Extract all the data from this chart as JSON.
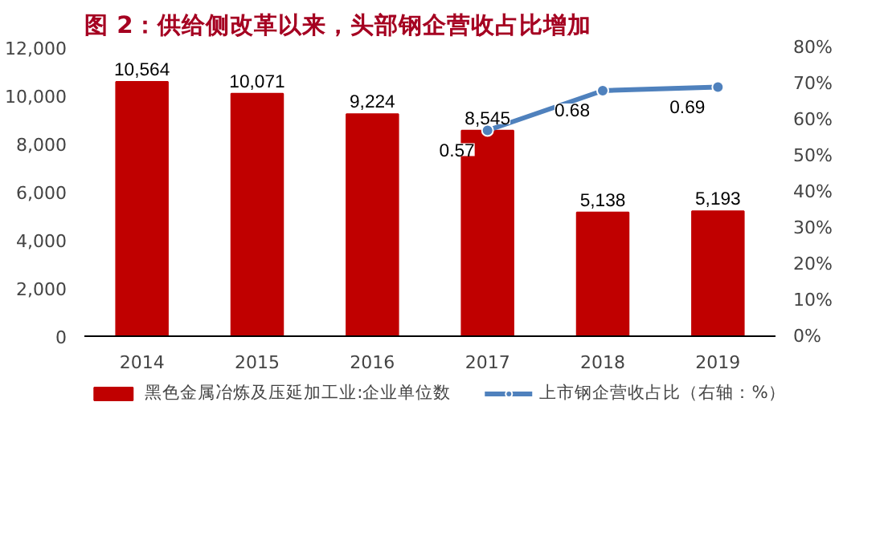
{
  "chart_data": {
    "type": "bar",
    "title": "图 2：供给侧改革以来，头部钢企营收占比增加",
    "categories": [
      "2014",
      "2015",
      "2016",
      "2017",
      "2018",
      "2019"
    ],
    "series": [
      {
        "name": "黑色金属冶炼及压延加工业:企业单位数",
        "color": "#c00000",
        "values": [
          10564,
          10071,
          9224,
          8545,
          5138,
          5193
        ],
        "value_labels": [
          "10,564",
          "10,071",
          "9,224",
          "8,545",
          "5,138",
          "5,193"
        ]
      },
      {
        "name": "上市钢企营收占比（右轴：%）",
        "type": "line",
        "axis": "y2",
        "color": "#4f81bd",
        "marker": "circle",
        "values": [
          null,
          null,
          null,
          0.57,
          0.68,
          0.69
        ]
      }
    ],
    "ylim": [
      0,
      12000
    ],
    "yticks": [
      0,
      {
        "value": 2000,
        "label": "2,000"
      },
      {
        "value": 4000,
        "label": "4,000"
      },
      {
        "value": 6000,
        "label": "6,000"
      },
      {
        "value": 8000,
        "label": "8,000"
      },
      {
        "value": 10000,
        "label": "10,000"
      },
      {
        "value": 12000,
        "label": "12,000"
      }
    ],
    "y2lim": [
      0,
      0.8
    ],
    "y2ticks": [
      {
        "value": 0,
        "label": "0%"
      },
      {
        "value": 0.1,
        "label": "10%"
      },
      {
        "value": 0.2,
        "label": "20%"
      },
      {
        "value": 0.3,
        "label": "30%"
      },
      {
        "value": 0.4,
        "label": "40%"
      },
      {
        "value": 0.5,
        "label": "50%"
      },
      {
        "value": 0.6,
        "label": "60%"
      },
      {
        "value": 0.7,
        "label": "70%"
      },
      {
        "value": 0.8,
        "label": "80%"
      }
    ],
    "data_labels": true,
    "grid": false,
    "legend": "bottom"
  }
}
